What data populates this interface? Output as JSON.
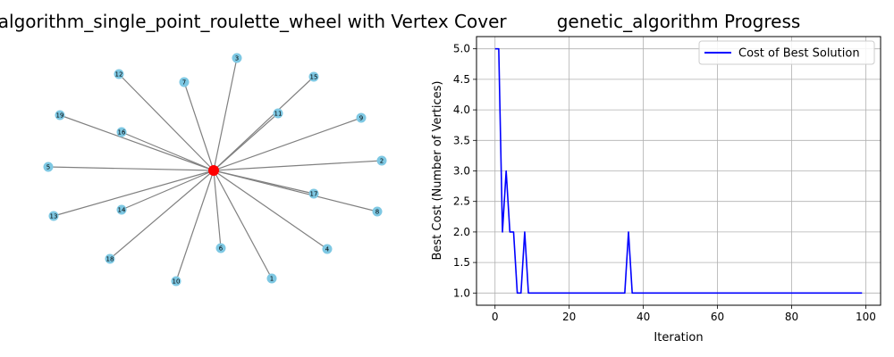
{
  "graph_panel": {
    "title": "genetic_algorithm_single_point_roulette_wheel with Vertex Cover",
    "center_node": {
      "id": "0",
      "color": "#ff0000",
      "in_cover": true
    },
    "node_color": "#7ec8e3",
    "edge_color": "#808080",
    "nodes": [
      {
        "id": "3",
        "label": "3"
      },
      {
        "id": "7",
        "label": "7"
      },
      {
        "id": "12",
        "label": "12"
      },
      {
        "id": "15",
        "label": "15"
      },
      {
        "id": "11",
        "label": "11"
      },
      {
        "id": "19",
        "label": "19"
      },
      {
        "id": "16",
        "label": "16"
      },
      {
        "id": "9",
        "label": "9"
      },
      {
        "id": "5",
        "label": "5"
      },
      {
        "id": "2",
        "label": "2"
      },
      {
        "id": "17",
        "label": "17"
      },
      {
        "id": "13",
        "label": "13"
      },
      {
        "id": "14",
        "label": "14"
      },
      {
        "id": "8",
        "label": "8"
      },
      {
        "id": "6",
        "label": "6"
      },
      {
        "id": "4",
        "label": "4"
      },
      {
        "id": "18",
        "label": "18"
      },
      {
        "id": "1",
        "label": "1"
      },
      {
        "id": "10",
        "label": "10"
      }
    ]
  },
  "chart_data": {
    "type": "line",
    "title": "genetic_algorithm Progress",
    "xlabel": "Iteration",
    "ylabel": "Best Cost (Number of Vertices)",
    "xlim": [
      -5,
      104
    ],
    "ylim": [
      0.8,
      5.2
    ],
    "xticks": [
      0,
      20,
      40,
      60,
      80,
      100
    ],
    "yticks": [
      1.0,
      1.5,
      2.0,
      2.5,
      3.0,
      3.5,
      4.0,
      4.5,
      5.0
    ],
    "xtick_labels": [
      "0",
      "20",
      "40",
      "60",
      "80",
      "100"
    ],
    "ytick_labels": [
      "1.0",
      "1.5",
      "2.0",
      "2.5",
      "3.0",
      "3.5",
      "4.0",
      "4.5",
      "5.0"
    ],
    "grid": true,
    "legend_position": "top-right",
    "series": [
      {
        "name": "Cost of Best Solution",
        "color": "#0000ff",
        "x": [
          0,
          1,
          2,
          3,
          4,
          5,
          6,
          7,
          8,
          9,
          10,
          35,
          36,
          37,
          38,
          99
        ],
        "y": [
          5,
          5,
          2,
          3,
          2,
          2,
          1,
          1,
          2,
          1,
          1,
          1,
          2,
          1,
          1,
          1
        ]
      }
    ]
  }
}
